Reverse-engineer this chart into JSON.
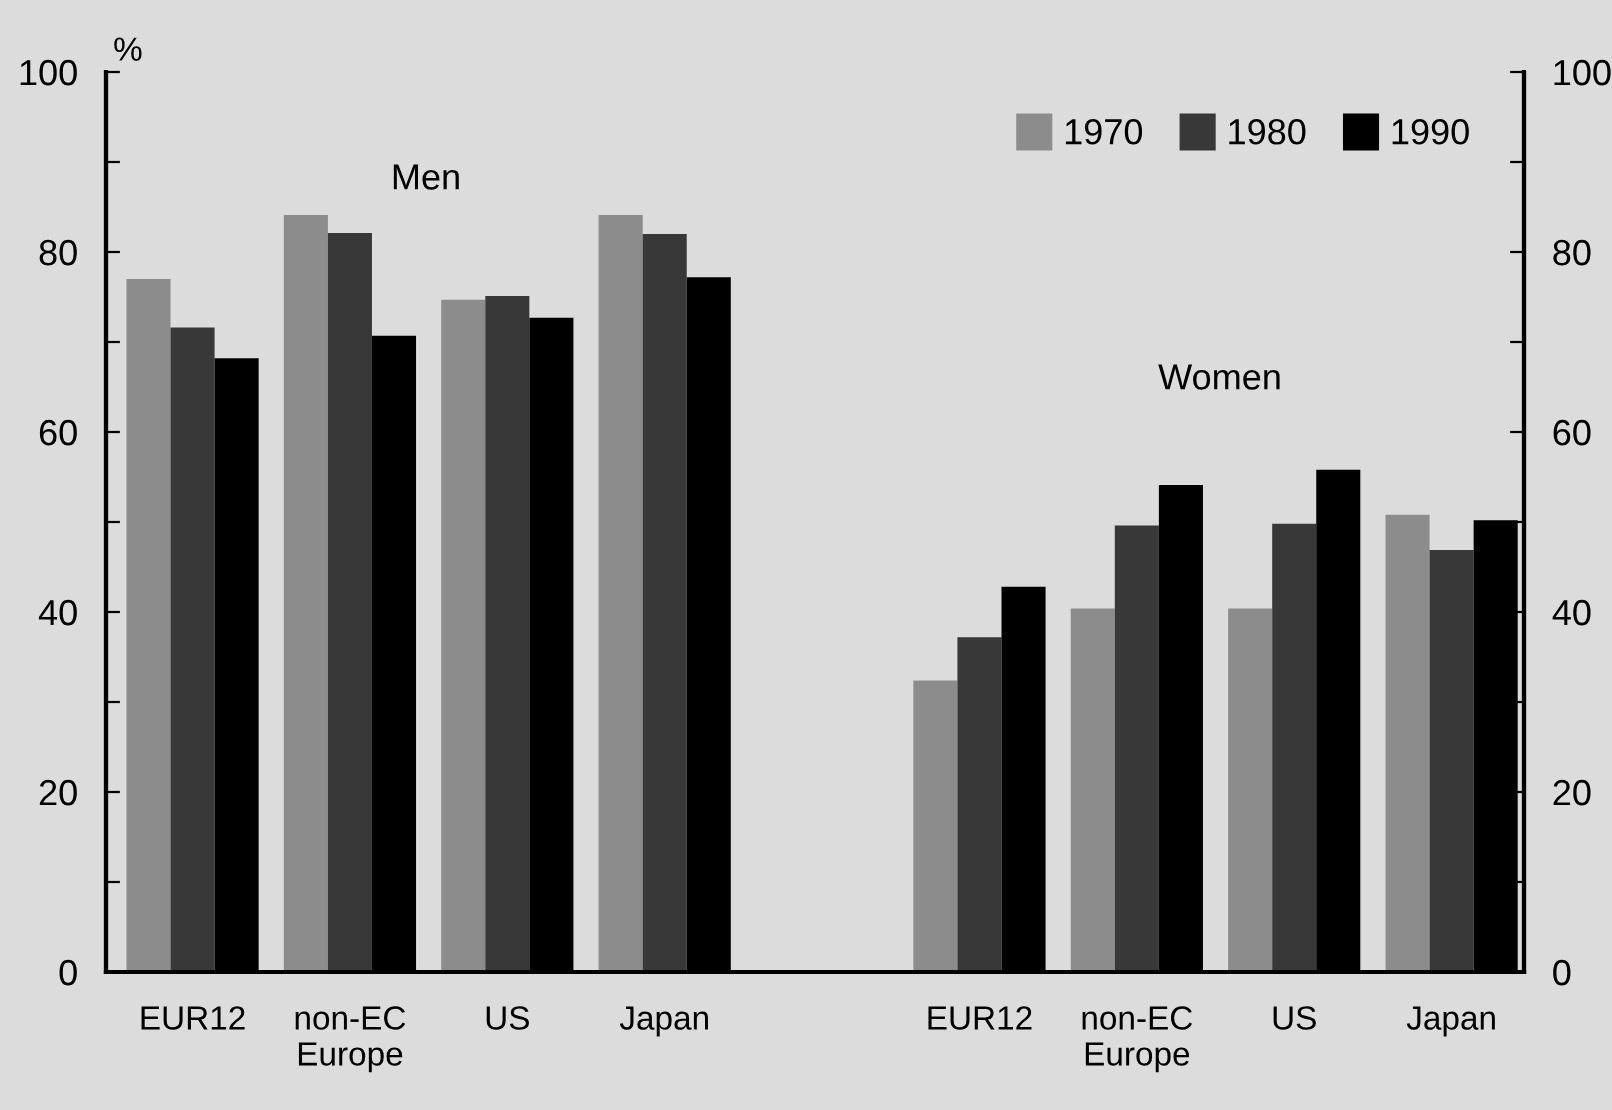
{
  "chart_data": {
    "type": "bar",
    "categories": [
      "EUR12",
      "non-EC\nEurope",
      "US",
      "Japan",
      null,
      "EUR12",
      "non-EC\nEurope",
      "US",
      "Japan"
    ],
    "series": [
      {
        "name": "1970",
        "color": "#8c8c8c",
        "values": [
          77.0,
          84.1,
          74.7,
          84.1,
          null,
          32.4,
          40.4,
          40.4,
          50.8
        ]
      },
      {
        "name": "1980",
        "color": "#383838",
        "values": [
          71.6,
          82.1,
          75.1,
          82.0,
          null,
          37.2,
          49.6,
          49.8,
          46.9
        ]
      },
      {
        "name": "1990",
        "color": "#000000",
        "values": [
          68.2,
          70.7,
          72.7,
          77.2,
          null,
          42.8,
          54.1,
          55.8,
          50.2
        ]
      }
    ],
    "ylabel": "%",
    "ylim": [
      0,
      100
    ],
    "yticks": [
      0,
      {
        "value": 10,
        "label": null
      },
      20,
      {
        "value": 30,
        "label": null
      },
      40,
      {
        "value": 50,
        "label": null
      },
      60,
      {
        "value": 70,
        "label": null
      },
      80,
      {
        "value": 90,
        "label": null
      },
      100
    ],
    "y2lim": [
      0,
      100
    ],
    "y2ticks": [
      0,
      {
        "value": 10,
        "label": null
      },
      20,
      {
        "value": 30,
        "label": null
      },
      40,
      {
        "value": 50,
        "label": null
      },
      60,
      {
        "value": 70,
        "label": null
      },
      80,
      {
        "value": 90,
        "label": null
      },
      100
    ],
    "annotations": [
      "Men",
      "Women"
    ],
    "legend": "top right",
    "grid": false
  }
}
